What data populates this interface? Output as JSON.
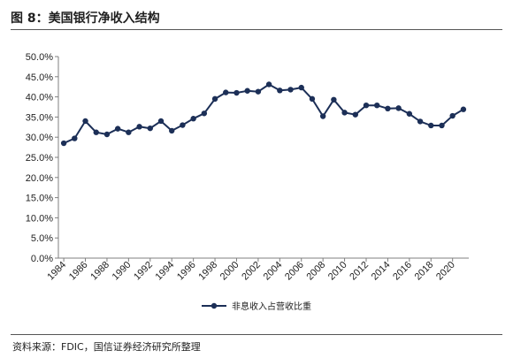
{
  "figure": {
    "title": "图 8：美国银行净收入结构",
    "source": "资料来源：FDIC，国信证券经济研究所整理"
  },
  "chart_data": {
    "type": "line",
    "title": "",
    "xlabel": "",
    "ylabel": "",
    "x": [
      1984,
      1985,
      1986,
      1987,
      1988,
      1989,
      1990,
      1991,
      1992,
      1993,
      1994,
      1995,
      1996,
      1997,
      1998,
      1999,
      2000,
      2001,
      2002,
      2003,
      2004,
      2005,
      2006,
      2007,
      2008,
      2009,
      2010,
      2011,
      2012,
      2013,
      2014,
      2015,
      2016,
      2017,
      2018,
      2019,
      2020,
      2021
    ],
    "x_tick_labels": [
      "1984",
      "1986",
      "1988",
      "1990",
      "1992",
      "1994",
      "1996",
      "1998",
      "2000",
      "2002",
      "2004",
      "2006",
      "2008",
      "2010",
      "2012",
      "2014",
      "2016",
      "2018",
      "2020"
    ],
    "y_tick_labels": [
      "0.0%",
      "5.0%",
      "10.0%",
      "15.0%",
      "20.0%",
      "25.0%",
      "30.0%",
      "35.0%",
      "40.0%",
      "45.0%",
      "50.0%"
    ],
    "ylim": [
      0,
      50
    ],
    "grid": false,
    "legend_position": "bottom",
    "series": [
      {
        "name": "非息收入占营收比重",
        "color": "#1c2f57",
        "values": [
          28.5,
          29.7,
          34.0,
          31.2,
          30.7,
          32.1,
          31.2,
          32.6,
          32.2,
          34.0,
          31.6,
          33.0,
          34.6,
          35.9,
          39.5,
          41.1,
          41.0,
          41.5,
          41.3,
          43.1,
          41.6,
          41.8,
          42.3,
          39.5,
          35.2,
          39.3,
          36.1,
          35.6,
          37.9,
          37.9,
          37.1,
          37.2,
          35.8,
          33.9,
          32.9,
          32.9,
          35.3,
          36.9
        ]
      }
    ]
  }
}
